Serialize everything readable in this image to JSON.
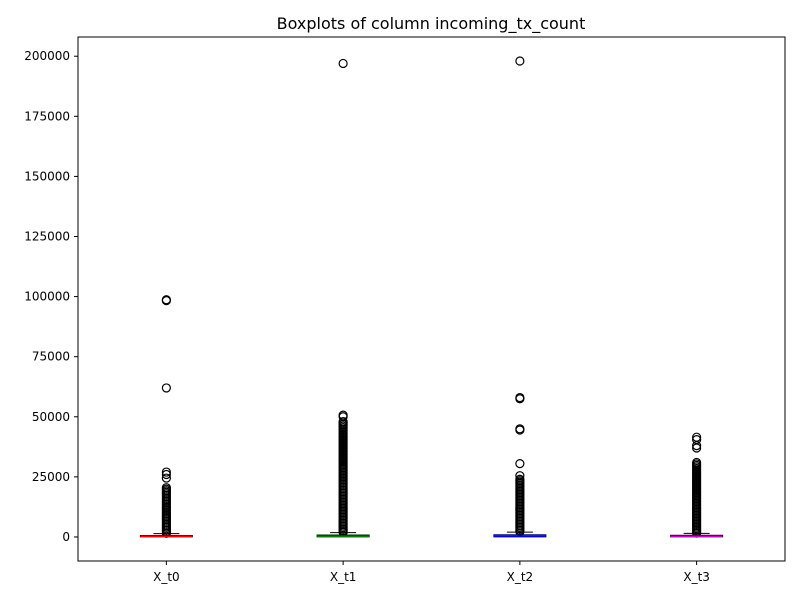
{
  "chart_data": {
    "type": "boxplot",
    "title": "Boxplots of column incoming_tx_count",
    "xlabel": "",
    "ylabel": "",
    "ylim": [
      -10000,
      208000
    ],
    "yticks": [
      0,
      25000,
      50000,
      75000,
      100000,
      125000,
      150000,
      175000,
      200000
    ],
    "ytick_labels": [
      "0",
      "25000",
      "50000",
      "75000",
      "100000",
      "125000",
      "150000",
      "175000",
      "200000"
    ],
    "categories": [
      "X_t0",
      "X_t1",
      "X_t2",
      "X_t3"
    ],
    "grid": false,
    "series": [
      {
        "category": "X_t0",
        "color": "#ff0000",
        "median": 200,
        "q1": 50,
        "q3": 600,
        "whisker_low": 0,
        "whisker_high": 1400,
        "outliers_dense": [
          1500,
          20500
        ],
        "outliers": [
          24500,
          26000,
          27000,
          62000,
          98300,
          98700
        ]
      },
      {
        "category": "X_t1",
        "color": "#008000",
        "median": 250,
        "q1": 60,
        "q3": 800,
        "whisker_low": 0,
        "whisker_high": 1800,
        "outliers_dense": [
          2000,
          48000
        ],
        "outliers": [
          50000,
          50700,
          197000
        ]
      },
      {
        "category": "X_t2",
        "color": "#0000ff",
        "median": 300,
        "q1": 70,
        "q3": 900,
        "whisker_low": 0,
        "whisker_high": 2000,
        "outliers_dense": [
          2200,
          24000
        ],
        "outliers": [
          25500,
          30500,
          44500,
          45000,
          57500,
          58000,
          198000
        ]
      },
      {
        "category": "X_t3",
        "color": "#cc00cc",
        "median": 200,
        "q1": 50,
        "q3": 700,
        "whisker_low": 0,
        "whisker_high": 1500,
        "outliers_dense": [
          1600,
          31000
        ],
        "outliers": [
          37000,
          38000,
          40500,
          41500
        ]
      }
    ]
  }
}
